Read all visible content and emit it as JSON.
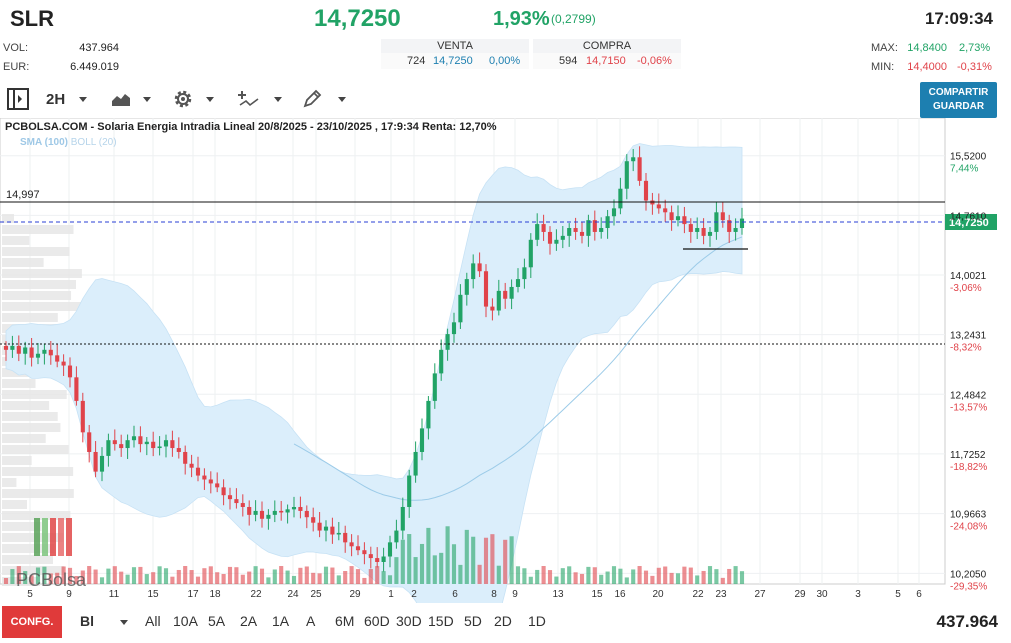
{
  "header": {
    "ticker": "SLR",
    "price": "14,7250",
    "change_pct": "1,93%",
    "change_abs": "(0,2799)",
    "time": "17:09:34",
    "vol_label": "VOL:",
    "vol_value": "437.964",
    "eur_label": "EUR:",
    "eur_value": "6.449.019",
    "venta": {
      "label": "VENTA",
      "qty": "724",
      "price": "14,7250",
      "pct": "0,00%"
    },
    "compra": {
      "label": "COMPRA",
      "qty": "594",
      "price": "14,7150",
      "pct": "-0,06%"
    },
    "max_label": "MAX:",
    "max_value": "14,8400",
    "max_pct": "2,73%",
    "min_label": "MIN:",
    "min_value": "14,4000",
    "min_pct": "-0,31%"
  },
  "toolbar": {
    "timeframe": "2H",
    "share_line1": "COMPARTIR",
    "share_line2": "GUARDAR",
    "icons": [
      "panel-toggle-icon",
      "area-chart-icon",
      "gear-icon",
      "indicators-icon",
      "draw-pencil-icon"
    ]
  },
  "chart": {
    "title": "PCBOLSA.COM - Solaria Energia Intradia Lineal 20/8/2025 - 23/10/2025 , 17:9:34 Renta: 12,70%",
    "indicator_sma": "SMA (100)",
    "indicator_boll": "BOLL (20)",
    "hline_label": "14,997",
    "watermark": "PCBolsa"
  },
  "colors": {
    "up": "#21a366",
    "down": "#e0434a",
    "accent": "#1d7fb0",
    "band": "#dbeefb",
    "sma": "#9ccbe8"
  },
  "chart_data": {
    "type": "candlestick",
    "price_ticks": [
      {
        "value": "15,5200",
        "pct": "7,44%",
        "dir": "up"
      },
      {
        "value": "14,7610",
        "pct": "",
        "dir": "none"
      },
      {
        "value": "14,0021",
        "pct": "-3,06%",
        "dir": "down"
      },
      {
        "value": "13,2431",
        "pct": "-8,32%",
        "dir": "down"
      },
      {
        "value": "12,4842",
        "pct": "-13,57%",
        "dir": "down"
      },
      {
        "value": "11,7252",
        "pct": "-18,82%",
        "dir": "down"
      },
      {
        "value": "10,9663",
        "pct": "-24,08%",
        "dir": "down"
      },
      {
        "value": "10,2050",
        "pct": "-29,35%",
        "dir": "down"
      }
    ],
    "current_price_label": "14,7250",
    "x_ticks": [
      "5",
      "9",
      "11",
      "15",
      "17",
      "18",
      "22",
      "24",
      "25",
      "29",
      "1",
      "2",
      "6",
      "8",
      "9",
      "13",
      "15",
      "16",
      "20",
      "22",
      "23",
      "27",
      "29",
      "30",
      "3",
      "5",
      "6"
    ],
    "closes": [
      13.05,
      13.1,
      13.0,
      13.08,
      12.95,
      13.0,
      13.05,
      12.98,
      12.9,
      12.85,
      12.7,
      12.4,
      12.0,
      11.75,
      11.5,
      11.7,
      11.9,
      11.85,
      11.8,
      11.9,
      11.95,
      11.85,
      11.88,
      11.8,
      11.82,
      11.9,
      11.8,
      11.75,
      11.6,
      11.55,
      11.45,
      11.4,
      11.35,
      11.3,
      11.2,
      11.15,
      11.1,
      11.05,
      10.95,
      11.0,
      10.9,
      10.95,
      11.0,
      10.98,
      11.02,
      11.05,
      11.0,
      10.92,
      10.85,
      10.75,
      10.8,
      10.7,
      10.72,
      10.6,
      10.55,
      10.5,
      10.45,
      10.4,
      10.35,
      10.42,
      10.6,
      10.75,
      11.05,
      11.45,
      11.75,
      12.05,
      12.4,
      12.75,
      13.05,
      13.25,
      13.4,
      13.75,
      13.95,
      14.15,
      14.05,
      13.6,
      13.55,
      13.8,
      13.7,
      13.85,
      13.95,
      14.1,
      14.45,
      14.65,
      14.55,
      14.4,
      14.45,
      14.5,
      14.6,
      14.55,
      14.5,
      14.7,
      14.55,
      14.6,
      14.75,
      14.85,
      15.1,
      15.45,
      15.5,
      15.2,
      14.95,
      14.9,
      14.85,
      14.8,
      14.7,
      14.75,
      14.65,
      14.55,
      14.6,
      14.5,
      14.55,
      14.8,
      14.7,
      14.55,
      14.6,
      14.72
    ],
    "volume_total": "437.964"
  },
  "footer": {
    "config_label": "CONFG.",
    "mode": "Bl",
    "timeframes": [
      "All",
      "10A",
      "5A",
      "2A",
      "1A",
      "A",
      "6M",
      "60D",
      "30D",
      "15D",
      "5D",
      "2D",
      "1D"
    ],
    "volume_total": "437.964"
  }
}
